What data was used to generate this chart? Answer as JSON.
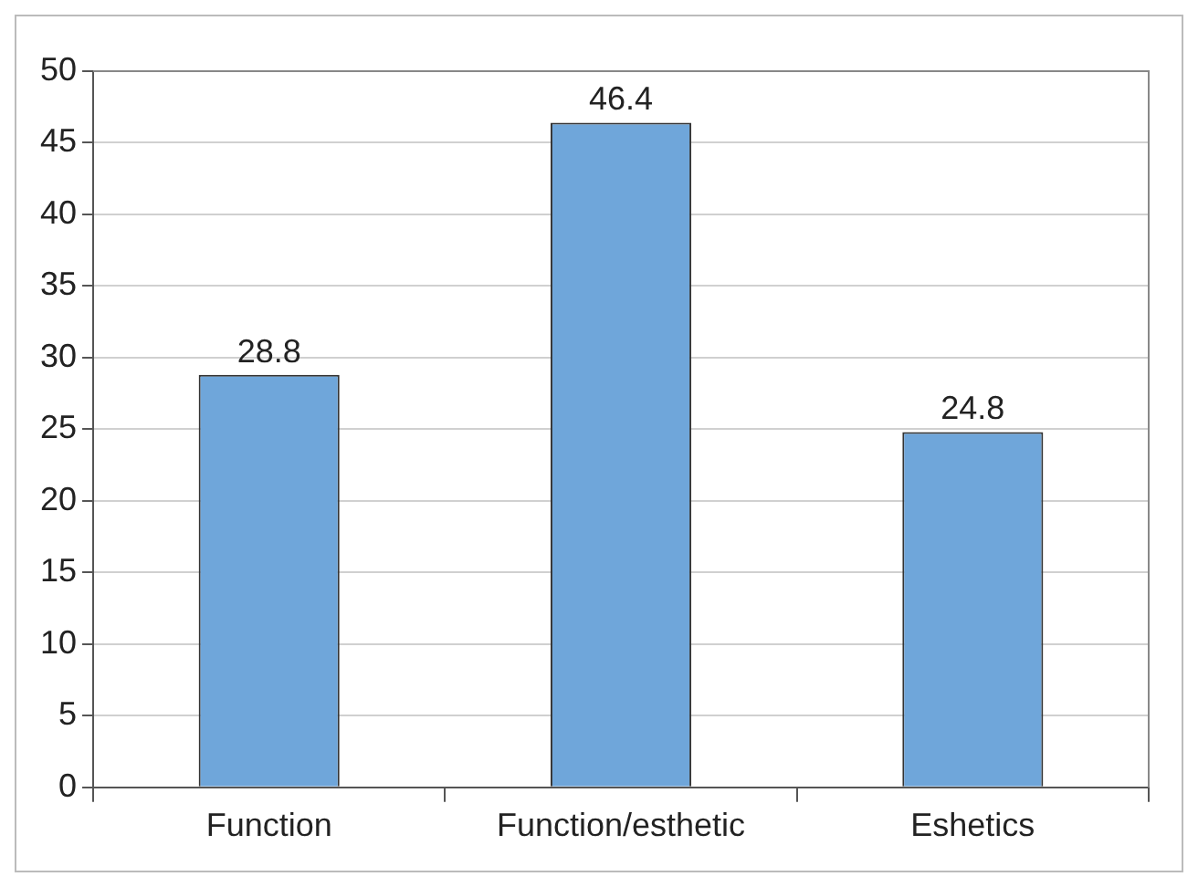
{
  "chart_data": {
    "type": "bar",
    "categories": [
      "Function",
      "Function/esthetic",
      "Eshetics"
    ],
    "values": [
      28.8,
      46.4,
      24.8
    ],
    "color": "#6fa6da",
    "ylim": [
      0,
      50
    ],
    "yticks": [
      0,
      5,
      10,
      15,
      20,
      25,
      30,
      35,
      40,
      45,
      50
    ],
    "grid": "y",
    "data_labels": true,
    "legend": false
  }
}
